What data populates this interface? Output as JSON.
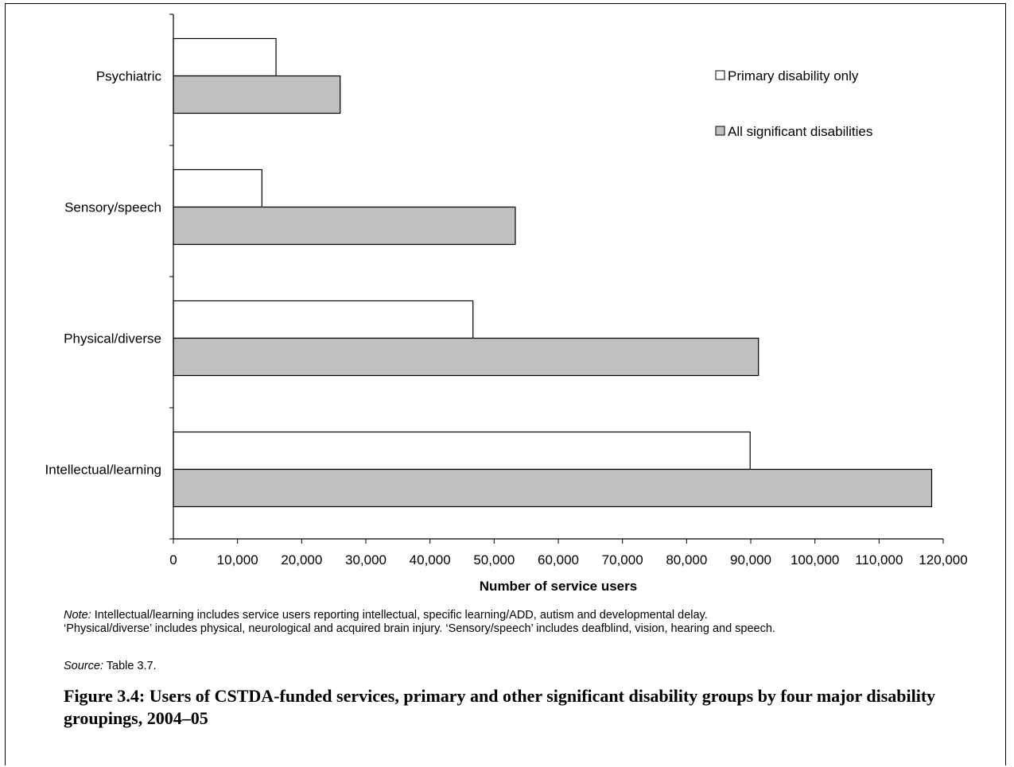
{
  "chart_data": {
    "type": "bar",
    "orientation": "horizontal",
    "categories": [
      "Psychiatric",
      "Sensory/speech",
      "Physical/diverse",
      "Intellectual/learning"
    ],
    "series": [
      {
        "name": "Primary disability only",
        "color": "#ffffff",
        "values": [
          16000,
          13800,
          46700,
          89900
        ]
      },
      {
        "name": "All significant disabilities",
        "color": "#c0c0c0",
        "values": [
          26000,
          53300,
          91200,
          118200
        ]
      }
    ],
    "xlabel": "Number of service users",
    "ylabel": "",
    "xlim": [
      0,
      120000
    ],
    "xticks": [
      0,
      10000,
      20000,
      30000,
      40000,
      50000,
      60000,
      70000,
      80000,
      90000,
      100000,
      110000,
      120000
    ],
    "xtick_labels": [
      "0",
      "10,000",
      "20,000",
      "30,000",
      "40,000",
      "50,000",
      "60,000",
      "70,000",
      "80,000",
      "90,000",
      "100,000",
      "110,000",
      "120,000"
    ],
    "grid": false,
    "legend_position": "top-right"
  },
  "note": {
    "label": "Note:",
    "line1": " Intellectual/learning includes service users reporting intellectual, specific learning/ADD, autism and developmental delay.",
    "line2": "‘Physical/diverse’ includes physical, neurological and acquired brain injury. ‘Sensory/speech’ includes deafblind, vision, hearing and speech."
  },
  "source": {
    "label": "Source:",
    "text": " Table 3.7."
  },
  "caption": "Figure 3.4: Users of CSTDA-funded services, primary and other significant disability groups by four major disability groupings, 2004–05"
}
